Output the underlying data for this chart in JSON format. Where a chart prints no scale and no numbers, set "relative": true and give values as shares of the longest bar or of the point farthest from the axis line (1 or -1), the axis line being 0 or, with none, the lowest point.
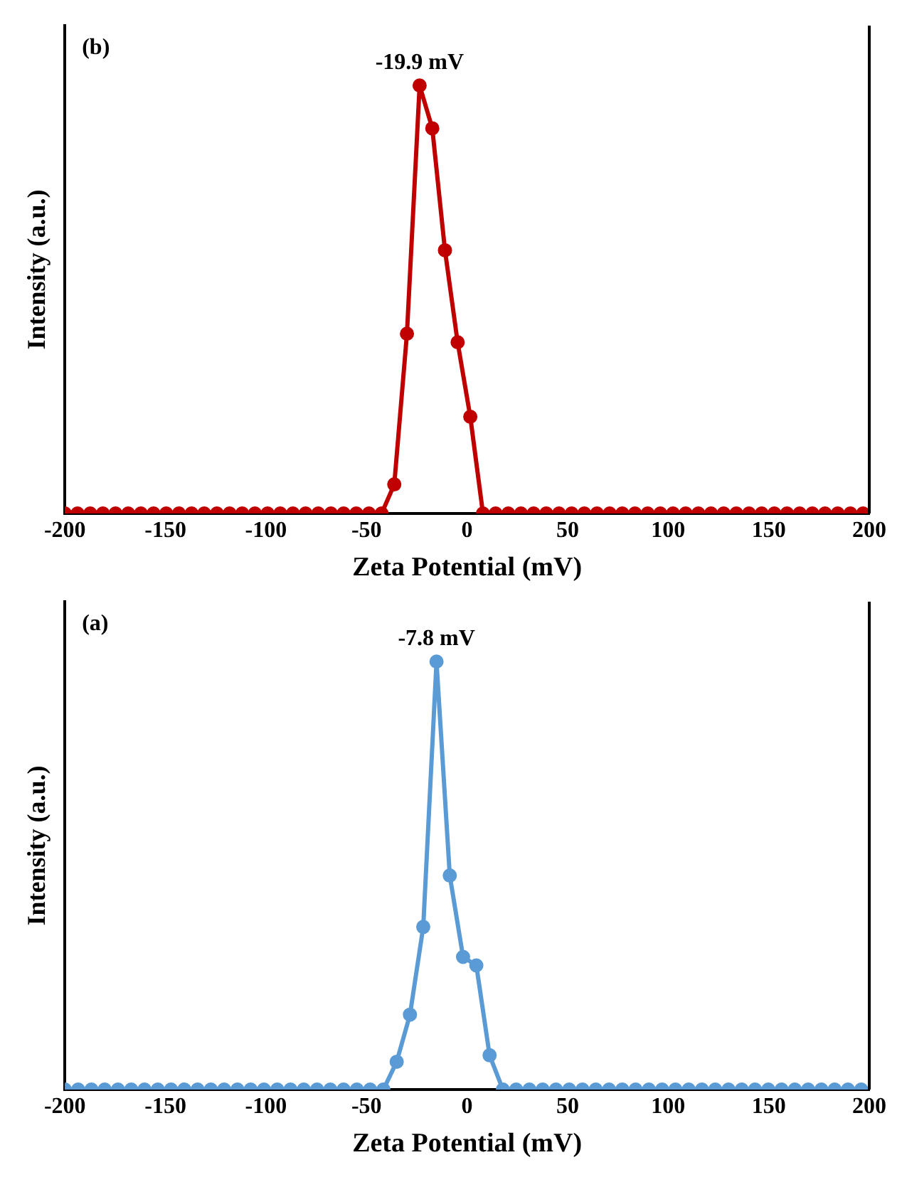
{
  "chart_data": [
    {
      "type": "line",
      "relative": true,
      "xlabel": "Zeta Potential (mV)",
      "ylabel": "Intensity (a.u.)",
      "xlim": [
        -200,
        200
      ],
      "xticks": [
        -200,
        -150,
        -100,
        -50,
        0,
        50,
        100,
        150,
        200
      ],
      "grid": false,
      "legend": false,
      "marker": "circle",
      "line_style": "solid",
      "annotations": [
        "(b)",
        {
          "text": "-19.9 mV",
          "x": -23.6,
          "y": 1
        }
      ],
      "series": [
        {
          "color": "#c00000",
          "x": [
            -200,
            -193.7,
            -187.4,
            -181.1,
            -174.8,
            -168.5,
            -162.2,
            -155.9,
            -149.6,
            -143.3,
            -137,
            -130.7,
            -124.4,
            -118.1,
            -111.8,
            -105.5,
            -99.2,
            -92.9,
            -86.6,
            -80.3,
            -74,
            -67.7,
            -61.4,
            -55.1,
            -48.8,
            -42.5,
            -36.2,
            -29.9,
            -23.6,
            -17.3,
            -11,
            -4.7,
            1.6,
            7.9,
            14.2,
            20.5,
            26.8,
            33.1,
            39.4,
            45.7,
            52,
            58.3,
            64.6,
            70.9,
            77.2,
            83.5,
            89.8,
            96.1,
            102.4,
            108.7,
            115,
            121.3,
            127.6,
            133.9,
            140.2,
            146.5,
            152.8,
            159.1,
            165.4,
            171.7,
            178,
            184.3,
            190.6,
            196.9
          ],
          "values": [
            0,
            0,
            0,
            0,
            0,
            0,
            0,
            0,
            0,
            0,
            0,
            0,
            0,
            0,
            0,
            0,
            0,
            0,
            0,
            0,
            0,
            0,
            0,
            0,
            0,
            0,
            0.068,
            0.42,
            1,
            0.9,
            0.615,
            0.4,
            0.226,
            0,
            0,
            0,
            0,
            0,
            0,
            0,
            0,
            0,
            0,
            0,
            0,
            0,
            0,
            0,
            0,
            0,
            0,
            0,
            0,
            0,
            0,
            0,
            0,
            0,
            0,
            0,
            0,
            0,
            0,
            0
          ]
        }
      ]
    },
    {
      "type": "line",
      "relative": true,
      "xlabel": "Zeta Potential (mV)",
      "ylabel": "Intensity (a.u.)",
      "xlim": [
        -200,
        200
      ],
      "xticks": [
        -200,
        -150,
        -100,
        -50,
        0,
        50,
        100,
        150,
        200
      ],
      "grid": false,
      "legend": false,
      "marker": "circle",
      "line_style": "solid",
      "annotations": [
        "(a)",
        {
          "text": "-7.8 mV",
          "x": -15.2,
          "y": 1
        }
      ],
      "series": [
        {
          "color": "#5b9bd5",
          "x": [
            -200,
            -193.4,
            -186.8,
            -180.2,
            -173.6,
            -167,
            -160.4,
            -153.8,
            -147.2,
            -140.6,
            -134,
            -127.4,
            -120.8,
            -114.2,
            -107.6,
            -101,
            -94.4,
            -87.8,
            -81.2,
            -74.6,
            -68,
            -61.4,
            -54.8,
            -48.2,
            -41.6,
            -35,
            -28.4,
            -21.8,
            -15.2,
            -8.6,
            -2,
            4.6,
            11.2,
            17.8,
            24.4,
            31,
            37.6,
            44.2,
            50.8,
            57.4,
            64,
            70.6,
            77.2,
            83.8,
            90.4,
            97,
            103.6,
            110.2,
            116.8,
            123.4,
            130,
            136.6,
            143.2,
            149.8,
            156.4,
            163,
            169.6,
            176.2,
            182.8,
            189.4,
            196
          ],
          "values": [
            0,
            0,
            0,
            0,
            0,
            0,
            0,
            0,
            0,
            0,
            0,
            0,
            0,
            0,
            0,
            0,
            0,
            0,
            0,
            0,
            0,
            0,
            0,
            0,
            0,
            0.065,
            0.175,
            0.38,
            1,
            0.5,
            0.31,
            0.29,
            0.08,
            0,
            0,
            0,
            0,
            0,
            0,
            0,
            0,
            0,
            0,
            0,
            0,
            0,
            0,
            0,
            0,
            0,
            0,
            0,
            0,
            0,
            0,
            0,
            0,
            0,
            0,
            0,
            0
          ]
        }
      ]
    }
  ]
}
